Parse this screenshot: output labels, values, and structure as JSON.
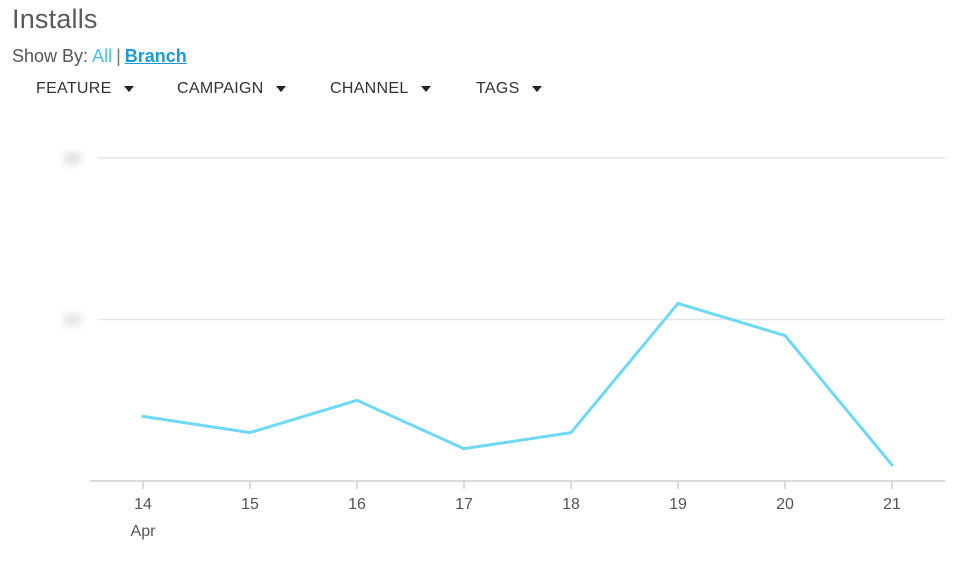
{
  "header": {
    "title": "Installs"
  },
  "show_by": {
    "label": "Show By:",
    "options": [
      "All",
      "Branch"
    ],
    "separator": "|",
    "selected": "Branch"
  },
  "filters": [
    {
      "label": "FEATURE"
    },
    {
      "label": "CAMPAIGN"
    },
    {
      "label": "CHANNEL"
    },
    {
      "label": "TAGS"
    }
  ],
  "colors": {
    "line": "#6fd9f5",
    "grid": "#e6e6e6",
    "axis": "#cfcfcf",
    "link": "#47c2e8"
  },
  "chart_data": {
    "type": "line",
    "title": "",
    "xlabel": "",
    "ylabel": "",
    "x": [
      "14",
      "15",
      "16",
      "17",
      "18",
      "19",
      "20",
      "21"
    ],
    "x_sublabel": "Apr",
    "series": [
      {
        "values": [
          4,
          3,
          5,
          2,
          3,
          11,
          9,
          1
        ]
      }
    ],
    "ylim": [
      0,
      20
    ],
    "yticks": [
      0,
      10,
      20
    ],
    "ytick_labels_blurred": true,
    "grid": true,
    "legend": "none"
  }
}
